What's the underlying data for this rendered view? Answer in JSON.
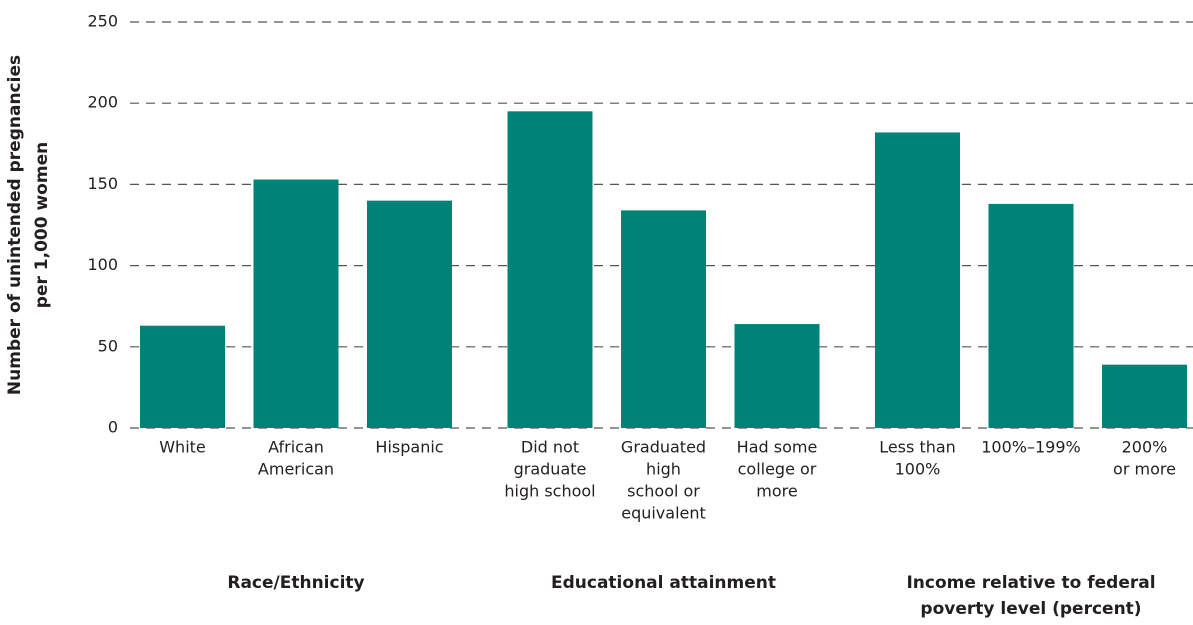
{
  "chart_data": {
    "type": "bar",
    "ylabel": [
      "Number of unintended pregnancies",
      "per 1,000 women"
    ],
    "color": "#008276",
    "ylim": [
      0,
      250
    ],
    "yticks": [
      0,
      50,
      100,
      150,
      200,
      250
    ],
    "grid": true,
    "groups": [
      {
        "label": [
          "Race/Ethnicity"
        ],
        "categories": [
          [
            "White"
          ],
          [
            "African",
            "American"
          ],
          [
            "Hispanic"
          ]
        ],
        "values": [
          63,
          153,
          140
        ]
      },
      {
        "label": [
          "Educational attainment"
        ],
        "categories": [
          [
            "Did not",
            "graduate",
            "high school"
          ],
          [
            "Graduated",
            "high",
            "school or",
            "equivalent"
          ],
          [
            "Had some",
            "college or",
            "more"
          ]
        ],
        "values": [
          195,
          134,
          64
        ]
      },
      {
        "label": [
          "Income relative to federal",
          "poverty level (percent)"
        ],
        "categories": [
          [
            "Less than",
            "100%"
          ],
          [
            "100%–199%"
          ],
          [
            "200%",
            "or more"
          ]
        ],
        "values": [
          182,
          138,
          39
        ]
      }
    ]
  }
}
